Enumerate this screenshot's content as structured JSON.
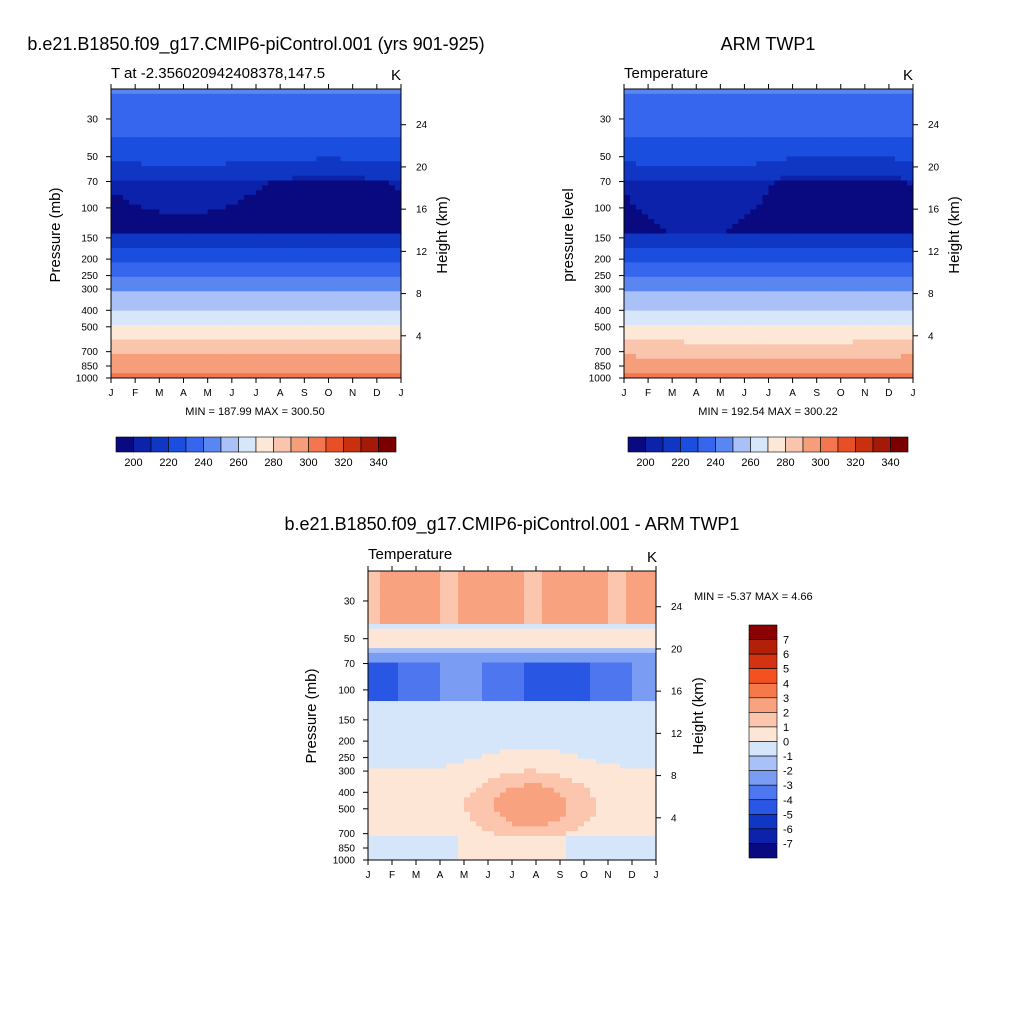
{
  "chart_data": [
    {
      "type": "heatmap",
      "title": "b.e21.B1850.f09_g17.CMIP6-piControl.001 (yrs 901-925)",
      "left_subtitle": "T at -2.356020942408378,147.5",
      "right_subtitle": "K",
      "ylabel": "Pressure (mb)",
      "ylabel_right": "Height (km)",
      "x": [
        "J",
        "F",
        "M",
        "A",
        "M",
        "J",
        "J",
        "A",
        "S",
        "O",
        "N",
        "D",
        "J"
      ],
      "y_ticks": [
        30,
        50,
        70,
        100,
        150,
        200,
        250,
        300,
        400,
        500,
        700,
        850,
        1000
      ],
      "y_log_scale": true,
      "height_ticks": [
        24,
        20,
        16,
        12,
        8,
        4
      ],
      "stats": "MIN = 187.99 MAX = 300.50",
      "bands": [
        {
          "level": 30,
          "values": [
            230,
            230,
            231,
            231,
            232,
            232,
            231,
            230,
            230,
            230,
            231,
            231,
            230
          ]
        },
        {
          "level": 45,
          "values": [
            213,
            213,
            213,
            212,
            211,
            210,
            210,
            211,
            211,
            211,
            212,
            213,
            213
          ]
        },
        {
          "level": 60,
          "values": [
            200,
            201,
            201,
            201,
            200,
            199,
            198,
            198,
            199,
            200,
            201,
            202,
            200
          ]
        },
        {
          "level": 100,
          "values": [
            192,
            192,
            192,
            192,
            192,
            192,
            192,
            192,
            192,
            192,
            192,
            192,
            192
          ]
        },
        {
          "level": 150,
          "values": [
            208,
            208,
            208,
            208,
            208,
            208,
            208,
            208,
            208,
            208,
            208,
            208,
            208
          ]
        },
        {
          "level": 200,
          "values": [
            223,
            223,
            223,
            223,
            223,
            223,
            223,
            223,
            223,
            223,
            223,
            223,
            223
          ]
        },
        {
          "level": 250,
          "values": [
            233,
            233,
            233,
            233,
            233,
            233,
            233,
            233,
            233,
            233,
            233,
            233,
            233
          ]
        },
        {
          "level": 300,
          "values": [
            244,
            244,
            244,
            244,
            244,
            244,
            244,
            244,
            244,
            244,
            244,
            244,
            244
          ]
        },
        {
          "level": 400,
          "values": [
            257,
            257,
            257,
            257,
            257,
            257,
            257,
            257,
            257,
            257,
            257,
            257,
            257
          ]
        },
        {
          "level": 500,
          "values": [
            267,
            267,
            267,
            267,
            267,
            267,
            267,
            267,
            267,
            267,
            267,
            267,
            267
          ]
        },
        {
          "level": 700,
          "values": [
            283,
            283,
            283,
            283,
            283,
            283,
            283,
            283,
            283,
            283,
            283,
            283,
            283
          ]
        },
        {
          "level": 850,
          "values": [
            292,
            292,
            292,
            292,
            292,
            292,
            292,
            292,
            292,
            292,
            292,
            292,
            292
          ]
        },
        {
          "level": 1000,
          "values": [
            299,
            299,
            299,
            299,
            299,
            299,
            299,
            299,
            299,
            299,
            299,
            299,
            299
          ]
        }
      ],
      "colorbar": {
        "orientation": "horizontal",
        "labels": [
          "200",
          "220",
          "240",
          "260",
          "280",
          "300",
          "320",
          "340"
        ],
        "colors": [
          "#0a0a80",
          "#0c22aa",
          "#1036c4",
          "#1a4ede",
          "#3666ee",
          "#5a86f2",
          "#a9c1f7",
          "#d7e6fa",
          "#fde8d8",
          "#f9c5ad",
          "#f69e7a",
          "#f27650",
          "#e84f26",
          "#c8300f",
          "#a41a08",
          "#7a0000"
        ]
      }
    },
    {
      "type": "heatmap",
      "title": "ARM TWP1",
      "left_subtitle": "Temperature",
      "right_subtitle": "K",
      "ylabel": "pressure level",
      "ylabel_right": "Height (km)",
      "x": [
        "J",
        "F",
        "M",
        "A",
        "M",
        "J",
        "J",
        "A",
        "S",
        "O",
        "N",
        "D",
        "J"
      ],
      "y_ticks": [
        30,
        50,
        70,
        100,
        150,
        200,
        250,
        300,
        400,
        500,
        700,
        850,
        1000
      ],
      "y_log_scale": true,
      "height_ticks": [
        24,
        20,
        16,
        12,
        8,
        4
      ],
      "stats": "MIN = 192.54 MAX = 300.22",
      "colorbar": {
        "orientation": "horizontal",
        "labels": [
          "200",
          "220",
          "240",
          "260",
          "280",
          "300",
          "320",
          "340"
        ],
        "colors": [
          "#0a0a80",
          "#0c22aa",
          "#1036c4",
          "#1a4ede",
          "#3666ee",
          "#5a86f2",
          "#a9c1f7",
          "#d7e6fa",
          "#fde8d8",
          "#f9c5ad",
          "#f69e7a",
          "#f27650",
          "#e84f26",
          "#c8300f",
          "#a41a08",
          "#7a0000"
        ]
      }
    },
    {
      "type": "heatmap",
      "title": "b.e21.B1850.f09_g17.CMIP6-piControl.001 - ARM TWP1",
      "left_subtitle": "Temperature",
      "right_subtitle": "K",
      "ylabel": "Pressure (mb)",
      "ylabel_right": "Height (km)",
      "x": [
        "J",
        "F",
        "M",
        "A",
        "M",
        "J",
        "J",
        "A",
        "S",
        "O",
        "N",
        "D",
        "J"
      ],
      "y_ticks": [
        30,
        50,
        70,
        100,
        150,
        200,
        250,
        300,
        400,
        500,
        700,
        850,
        1000
      ],
      "y_log_scale": true,
      "height_ticks": [
        24,
        20,
        16,
        12,
        8,
        4
      ],
      "stats": "MIN =   -5.37 MAX =    4.66",
      "colorbar": {
        "orientation": "vertical",
        "labels": [
          "7",
          "6",
          "5",
          "4",
          "3",
          "2",
          "1",
          "0",
          "-1",
          "-2",
          "-3",
          "-4",
          "-5",
          "-6",
          "-7"
        ],
        "colors": [
          "#8b0000",
          "#b22008",
          "#d33312",
          "#f2521f",
          "#f6794a",
          "#f9a27f",
          "#fcc5ad",
          "#fde6d6",
          "#d6e6fa",
          "#a9c1f7",
          "#7a9cf2",
          "#4e76ee",
          "#2a56e4",
          "#1036c4",
          "#0c22aa",
          "#0a0a80"
        ]
      }
    }
  ]
}
